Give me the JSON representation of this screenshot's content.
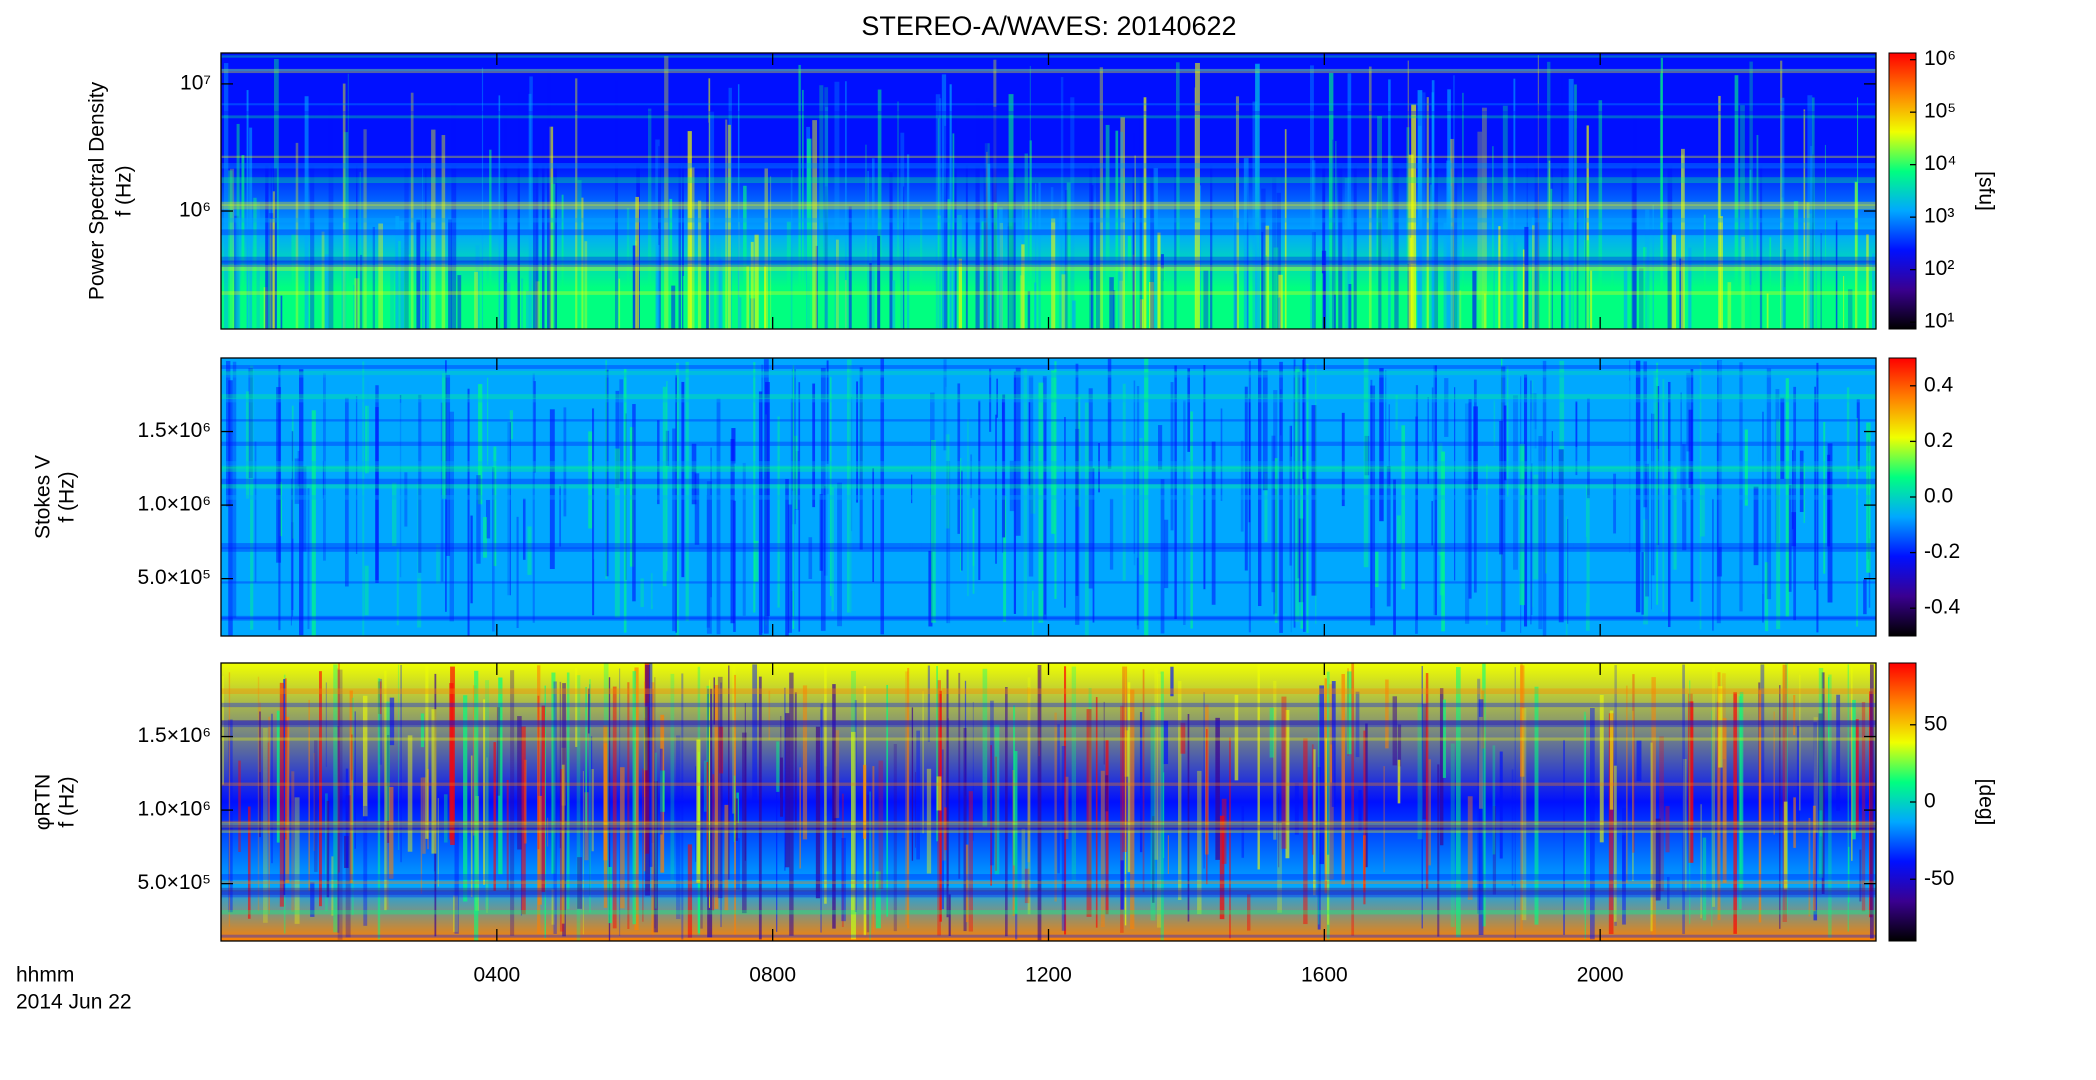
{
  "chart_data": {
    "type": "spectrogram",
    "title": "STEREO-A/WAVES: 20140622",
    "x_label": [
      "hhmm",
      "2014 Jun 22"
    ],
    "xlim": [
      0,
      24
    ],
    "xticks": [
      {
        "value": 4,
        "label": "0400"
      },
      {
        "value": 8,
        "label": "0800"
      },
      {
        "value": 12,
        "label": "1200"
      },
      {
        "value": 16,
        "label": "1600"
      },
      {
        "value": 20,
        "label": "2000"
      }
    ],
    "colormap": [
      "#000000",
      "#3a0090",
      "#0010ff",
      "#00a8ff",
      "#00ff80",
      "#f0ff00",
      "#ff8000",
      "#ff0000"
    ],
    "panels": [
      {
        "y_label": [
          "Power Spectral Density",
          "f (Hz)"
        ],
        "ylog": true,
        "ylim": [
          118000,
          17500000
        ],
        "yticks": [
          {
            "value": 1000000,
            "label": "10⁶"
          },
          {
            "value": 10000000,
            "label": "10⁷"
          }
        ],
        "clog": true,
        "clim": [
          7.4,
          1340000
        ],
        "cticks": [
          {
            "value": 10,
            "label": "10¹"
          },
          {
            "value": 100,
            "label": "10²"
          },
          {
            "value": 1000,
            "label": "10³"
          },
          {
            "value": 10000,
            "label": "10⁴"
          },
          {
            "value": 100000,
            "label": "10⁵"
          },
          {
            "value": 1000000,
            "label": "10⁶"
          }
        ],
        "c_label": "[sfu]"
      },
      {
        "y_label": [
          "Stokes V",
          "f (Hz)"
        ],
        "ylog": false,
        "ylim": [
          110000,
          2000000
        ],
        "yticks": [
          {
            "value": 500000,
            "label": "5.0×10⁵"
          },
          {
            "value": 1000000,
            "label": "1.0×10⁶"
          },
          {
            "value": 1500000,
            "label": "1.5×10⁶"
          }
        ],
        "clog": false,
        "clim": [
          -0.5,
          0.5
        ],
        "cticks": [
          -0.4,
          -0.2,
          {
            "value": 0,
            "label": "0.0"
          },
          0.2,
          0.4
        ]
      },
      {
        "y_label": [
          "φRTN",
          "f (Hz)"
        ],
        "ylog": false,
        "ylim": [
          110000,
          2000000
        ],
        "yticks": [
          {
            "value": 500000,
            "label": "5.0×10⁵"
          },
          {
            "value": 1000000,
            "label": "1.0×10⁶"
          },
          {
            "value": 1500000,
            "label": "1.5×10⁶"
          }
        ],
        "clog": false,
        "clim": [
          -90,
          90
        ],
        "cticks": [
          -50,
          0,
          50
        ],
        "c_label": "[deg]"
      }
    ]
  }
}
